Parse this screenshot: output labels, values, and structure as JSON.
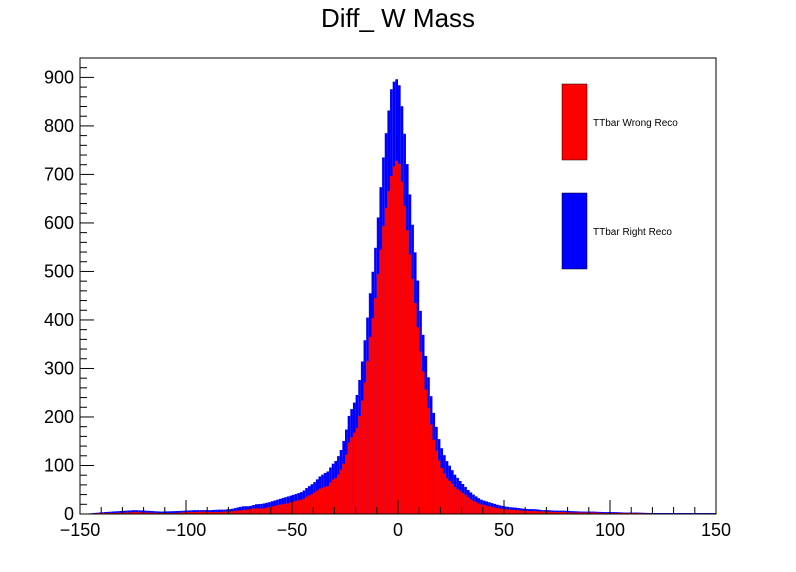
{
  "chart_data": {
    "type": "bar",
    "stacked": true,
    "title": "Diff_ W Mass",
    "xlabel": "",
    "ylabel": "",
    "xlim": [
      -150,
      150
    ],
    "ylim": [
      0,
      940
    ],
    "x_ticks": [
      -150,
      -100,
      -50,
      0,
      50,
      100,
      150
    ],
    "y_ticks": [
      0,
      100,
      200,
      300,
      400,
      500,
      600,
      700,
      800,
      900
    ],
    "bin_width": 1.25,
    "grid": false,
    "legend_position": "top-right",
    "bins": [
      [
        -148,
        0,
        1
      ],
      [
        -146,
        0,
        1
      ],
      [
        -141,
        2,
        1
      ],
      [
        -135,
        2,
        3
      ],
      [
        -128,
        3,
        4
      ],
      [
        -124,
        4,
        4
      ],
      [
        -119,
        3,
        4
      ],
      [
        -112,
        2,
        3
      ],
      [
        -105,
        2,
        4
      ],
      [
        -100,
        4,
        3
      ],
      [
        -96,
        4,
        4
      ],
      [
        -92,
        5,
        3
      ],
      [
        -88,
        4,
        4
      ],
      [
        -85,
        4,
        5
      ],
      [
        -82,
        5,
        4
      ],
      [
        -79,
        5,
        5
      ],
      [
        -76,
        7,
        6
      ],
      [
        -73,
        8,
        8
      ],
      [
        -70,
        10,
        6
      ],
      [
        -67,
        12,
        8
      ],
      [
        -64,
        11,
        10
      ],
      [
        -61,
        14,
        10
      ],
      [
        -58,
        17,
        11
      ],
      [
        -55,
        20,
        12
      ],
      [
        -52,
        22,
        14
      ],
      [
        -49,
        26,
        14
      ],
      [
        -47,
        28,
        15
      ],
      [
        -45,
        30,
        16
      ],
      [
        -43,
        36,
        18
      ],
      [
        -41,
        40,
        20
      ],
      [
        -39,
        45,
        22
      ],
      [
        -37,
        52,
        25
      ],
      [
        -35,
        55,
        28
      ],
      [
        -33,
        58,
        30
      ],
      [
        -31,
        70,
        32
      ],
      [
        -29,
        75,
        36
      ],
      [
        -27,
        90,
        40
      ],
      [
        -25,
        110,
        50
      ],
      [
        -23,
        150,
        55
      ],
      [
        -21,
        165,
        60
      ],
      [
        -19,
        180,
        70
      ],
      [
        -17,
        230,
        80
      ],
      [
        -15,
        290,
        90
      ],
      [
        -13,
        370,
        90
      ],
      [
        -11,
        430,
        100
      ],
      [
        -9,
        510,
        120
      ],
      [
        -7,
        590,
        140
      ],
      [
        -5,
        650,
        160
      ],
      [
        -3,
        700,
        180
      ],
      [
        -1,
        730,
        170
      ],
      [
        1,
        720,
        160
      ],
      [
        3,
        640,
        150
      ],
      [
        5,
        560,
        130
      ],
      [
        7,
        480,
        110
      ],
      [
        9,
        400,
        100
      ],
      [
        11,
        320,
        80
      ],
      [
        13,
        260,
        70
      ],
      [
        15,
        200,
        60
      ],
      [
        17,
        150,
        55
      ],
      [
        19,
        115,
        45
      ],
      [
        21,
        90,
        40
      ],
      [
        23,
        75,
        35
      ],
      [
        25,
        65,
        30
      ],
      [
        27,
        55,
        25
      ],
      [
        29,
        48,
        22
      ],
      [
        31,
        42,
        18
      ],
      [
        33,
        35,
        15
      ],
      [
        35,
        28,
        14
      ],
      [
        37,
        24,
        12
      ],
      [
        39,
        20,
        10
      ],
      [
        41,
        18,
        9
      ],
      [
        44,
        15,
        8
      ],
      [
        47,
        12,
        7
      ],
      [
        50,
        10,
        6
      ],
      [
        53,
        9,
        5
      ],
      [
        56,
        8,
        5
      ],
      [
        59,
        7,
        4
      ],
      [
        62,
        6,
        4
      ],
      [
        65,
        6,
        4
      ],
      [
        68,
        5,
        3
      ],
      [
        71,
        5,
        3
      ],
      [
        74,
        4,
        3
      ],
      [
        78,
        4,
        3
      ],
      [
        82,
        3,
        3
      ],
      [
        87,
        3,
        2
      ],
      [
        92,
        3,
        2
      ],
      [
        97,
        2,
        2
      ],
      [
        102,
        2,
        2
      ],
      [
        107,
        2,
        1
      ],
      [
        113,
        2,
        1
      ],
      [
        119,
        1,
        1
      ],
      [
        126,
        1,
        1
      ],
      [
        133,
        1,
        1
      ],
      [
        140,
        1,
        1
      ],
      [
        146,
        1,
        1
      ]
    ],
    "bins_columns": [
      "x",
      "ttbar_wrong_reco",
      "ttbar_right_reco"
    ],
    "series": [
      {
        "name": "TTbar Wrong Reco",
        "color": "#ff0000"
      },
      {
        "name": "TTbar Right Reco",
        "color": "#0000ff"
      }
    ]
  }
}
